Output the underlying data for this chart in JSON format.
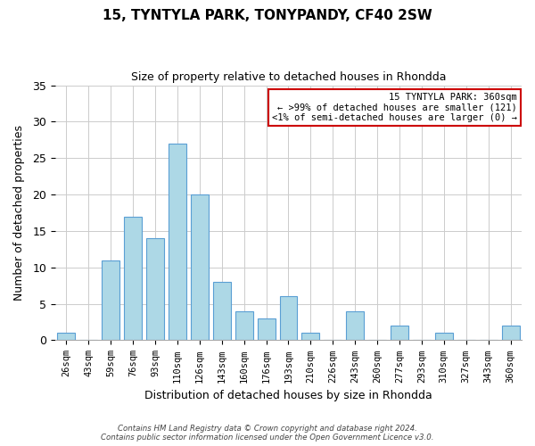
{
  "title": "15, TYNTYLA PARK, TONYPANDY, CF40 2SW",
  "subtitle": "Size of property relative to detached houses in Rhondda",
  "xlabel": "Distribution of detached houses by size in Rhondda",
  "ylabel": "Number of detached properties",
  "bar_color": "#add8e6",
  "bar_edge_color": "#5a9fd4",
  "categories": [
    "26sqm",
    "43sqm",
    "59sqm",
    "76sqm",
    "93sqm",
    "110sqm",
    "126sqm",
    "143sqm",
    "160sqm",
    "176sqm",
    "193sqm",
    "210sqm",
    "226sqm",
    "243sqm",
    "260sqm",
    "277sqm",
    "293sqm",
    "310sqm",
    "327sqm",
    "343sqm",
    "360sqm"
  ],
  "values": [
    1,
    0,
    11,
    17,
    14,
    27,
    20,
    8,
    4,
    3,
    6,
    1,
    0,
    4,
    0,
    2,
    0,
    1,
    0,
    0,
    2
  ],
  "ylim": [
    0,
    35
  ],
  "yticks": [
    0,
    5,
    10,
    15,
    20,
    25,
    30,
    35
  ],
  "annotation_title": "15 TYNTYLA PARK: 360sqm",
  "annotation_line1": "← >99% of detached houses are smaller (121)",
  "annotation_line2": "<1% of semi-detached houses are larger (0) →",
  "annotation_box_color": "#ffffff",
  "annotation_border_color": "#cc0000",
  "footer_line1": "Contains HM Land Registry data © Crown copyright and database right 2024.",
  "footer_line2": "Contains public sector information licensed under the Open Government Licence v3.0.",
  "background_color": "#ffffff",
  "grid_color": "#cccccc"
}
